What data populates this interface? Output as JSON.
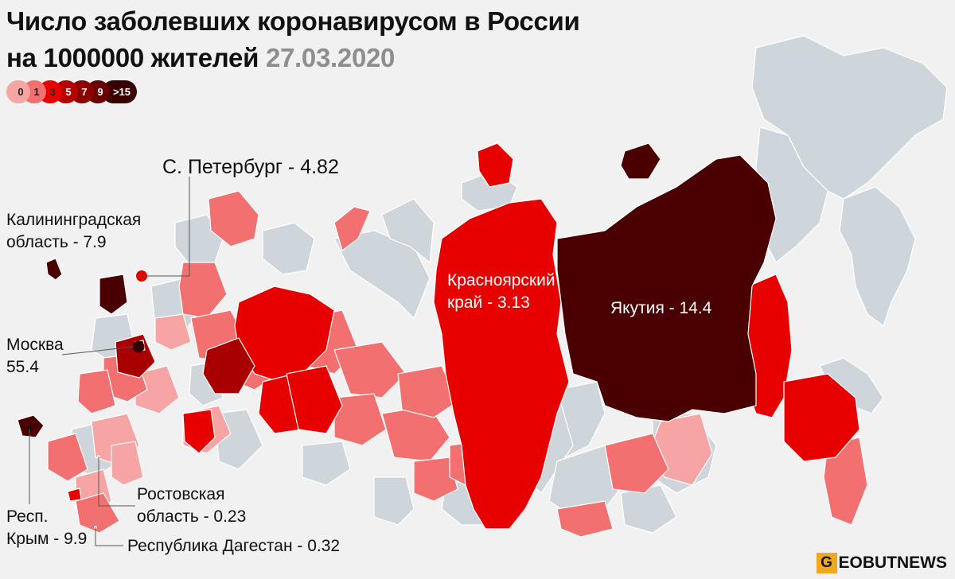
{
  "title": {
    "line1": "Число заболевших коронавирусом в России",
    "line2": "на 1000000 жителей",
    "date": "27.03.2020"
  },
  "legend": {
    "items": [
      {
        "label": "0",
        "color": "#f6a4a4"
      },
      {
        "label": "1",
        "color": "#f27070"
      },
      {
        "label": "3",
        "color": "#e60000"
      },
      {
        "label": "5",
        "color": "#b50000"
      },
      {
        "label": "7",
        "color": "#8c0000"
      },
      {
        "label": "9",
        "color": "#6a0000"
      },
      {
        "label": ">15",
        "color": "#3a0000"
      }
    ]
  },
  "labels": {
    "spb": "С. Петербург - 4.82",
    "kaliningrad_1": "Калининградская",
    "kaliningrad_2": "область - 7.9",
    "moscow_1": "Москва",
    "moscow_2": "55.4",
    "krasnoyarsk_1": "Красноярский",
    "krasnoyarsk_2": "край - 3.13",
    "yakutia": "Якутия - 14.4",
    "rostov_1": "Ростовская",
    "rostov_2": "область - 0.23",
    "crimea_1": "Респ.",
    "crimea_2": "Крым - 9.9",
    "dagestan": "Республика Дагестан - 0.32"
  },
  "logo": {
    "letter": "G",
    "rest": "EOBUTNEWS"
  },
  "colors": {
    "background": "#f1f1f1",
    "no_data": "#cfd6db",
    "level_0": "#f6a4a4",
    "level_1": "#f27070",
    "level_3": "#e60000",
    "level_5": "#b50000",
    "level_15": "#4a0000"
  }
}
